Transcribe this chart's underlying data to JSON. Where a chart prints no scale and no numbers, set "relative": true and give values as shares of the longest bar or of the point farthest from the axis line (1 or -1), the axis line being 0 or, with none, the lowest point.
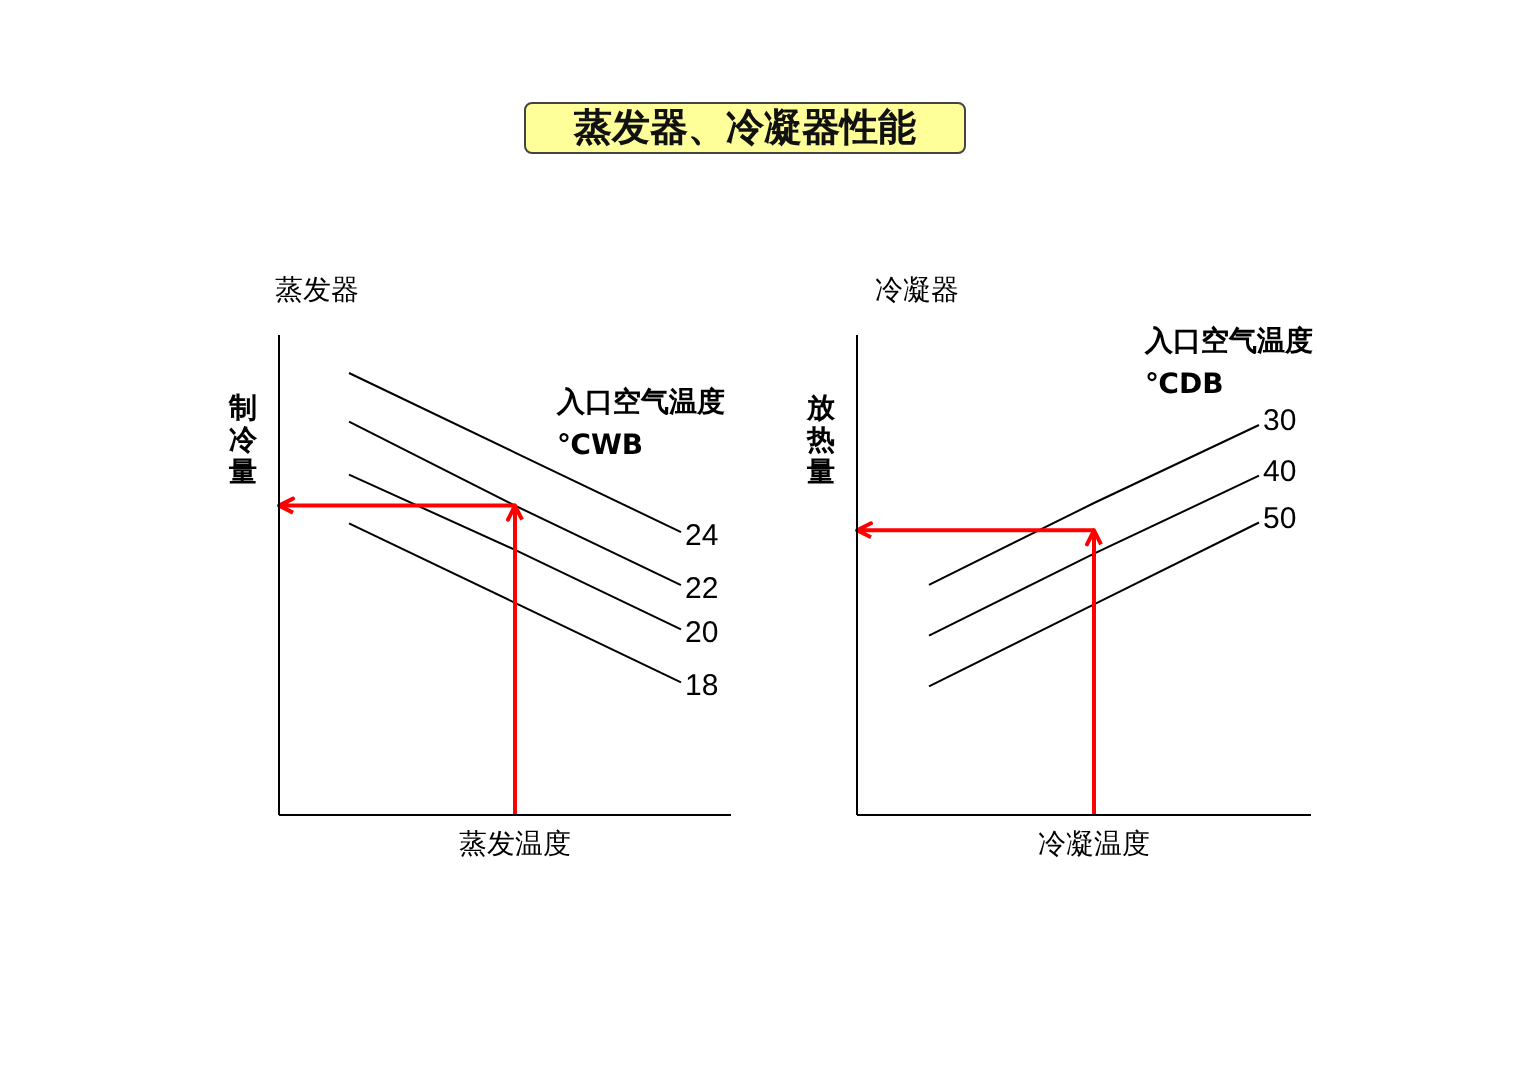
{
  "chart_data": [
    {
      "type": "line",
      "relative": true,
      "title": "蒸发器、冷凝器性能",
      "subtitle": "蒸发器",
      "xlabel": "蒸发温度",
      "ylabel": "制冷量",
      "legend_title": "入口空气温度\n℃WB",
      "categories": [
        null,
        null,
        null
      ],
      "series": [
        {
          "name": "24",
          "color": "#000000",
          "values": [
            1.0,
            0.82,
            0.64
          ]
        },
        {
          "name": "22",
          "color": "#000000",
          "values": [
            0.89,
            0.7,
            0.52
          ]
        },
        {
          "name": "20",
          "color": "#000000",
          "values": [
            0.77,
            0.6,
            0.42
          ]
        },
        {
          "name": "18",
          "color": "#000000",
          "values": [
            0.66,
            0.48,
            0.3
          ]
        }
      ],
      "ref_lines": [
        {
          "axis": "y",
          "value": 0.7,
          "color": "#ff0000"
        }
      ]
    },
    {
      "type": "line",
      "relative": true,
      "subtitle": "冷凝器",
      "xlabel": "冷凝温度",
      "ylabel": "放热量",
      "legend_title": "入口空气温度\n℃DB",
      "categories": [
        null,
        null,
        null
      ],
      "series": [
        {
          "name": "30",
          "color": "#000000",
          "values": [
            0.59,
            0.8,
            1.0
          ]
        },
        {
          "name": "40",
          "color": "#000000",
          "values": [
            0.46,
            0.67,
            0.87
          ]
        },
        {
          "name": "50",
          "color": "#000000",
          "values": [
            0.33,
            0.54,
            0.75
          ]
        }
      ],
      "ref_lines": [
        {
          "axis": "y",
          "value": 0.73,
          "color": "#ff0000"
        }
      ]
    }
  ]
}
